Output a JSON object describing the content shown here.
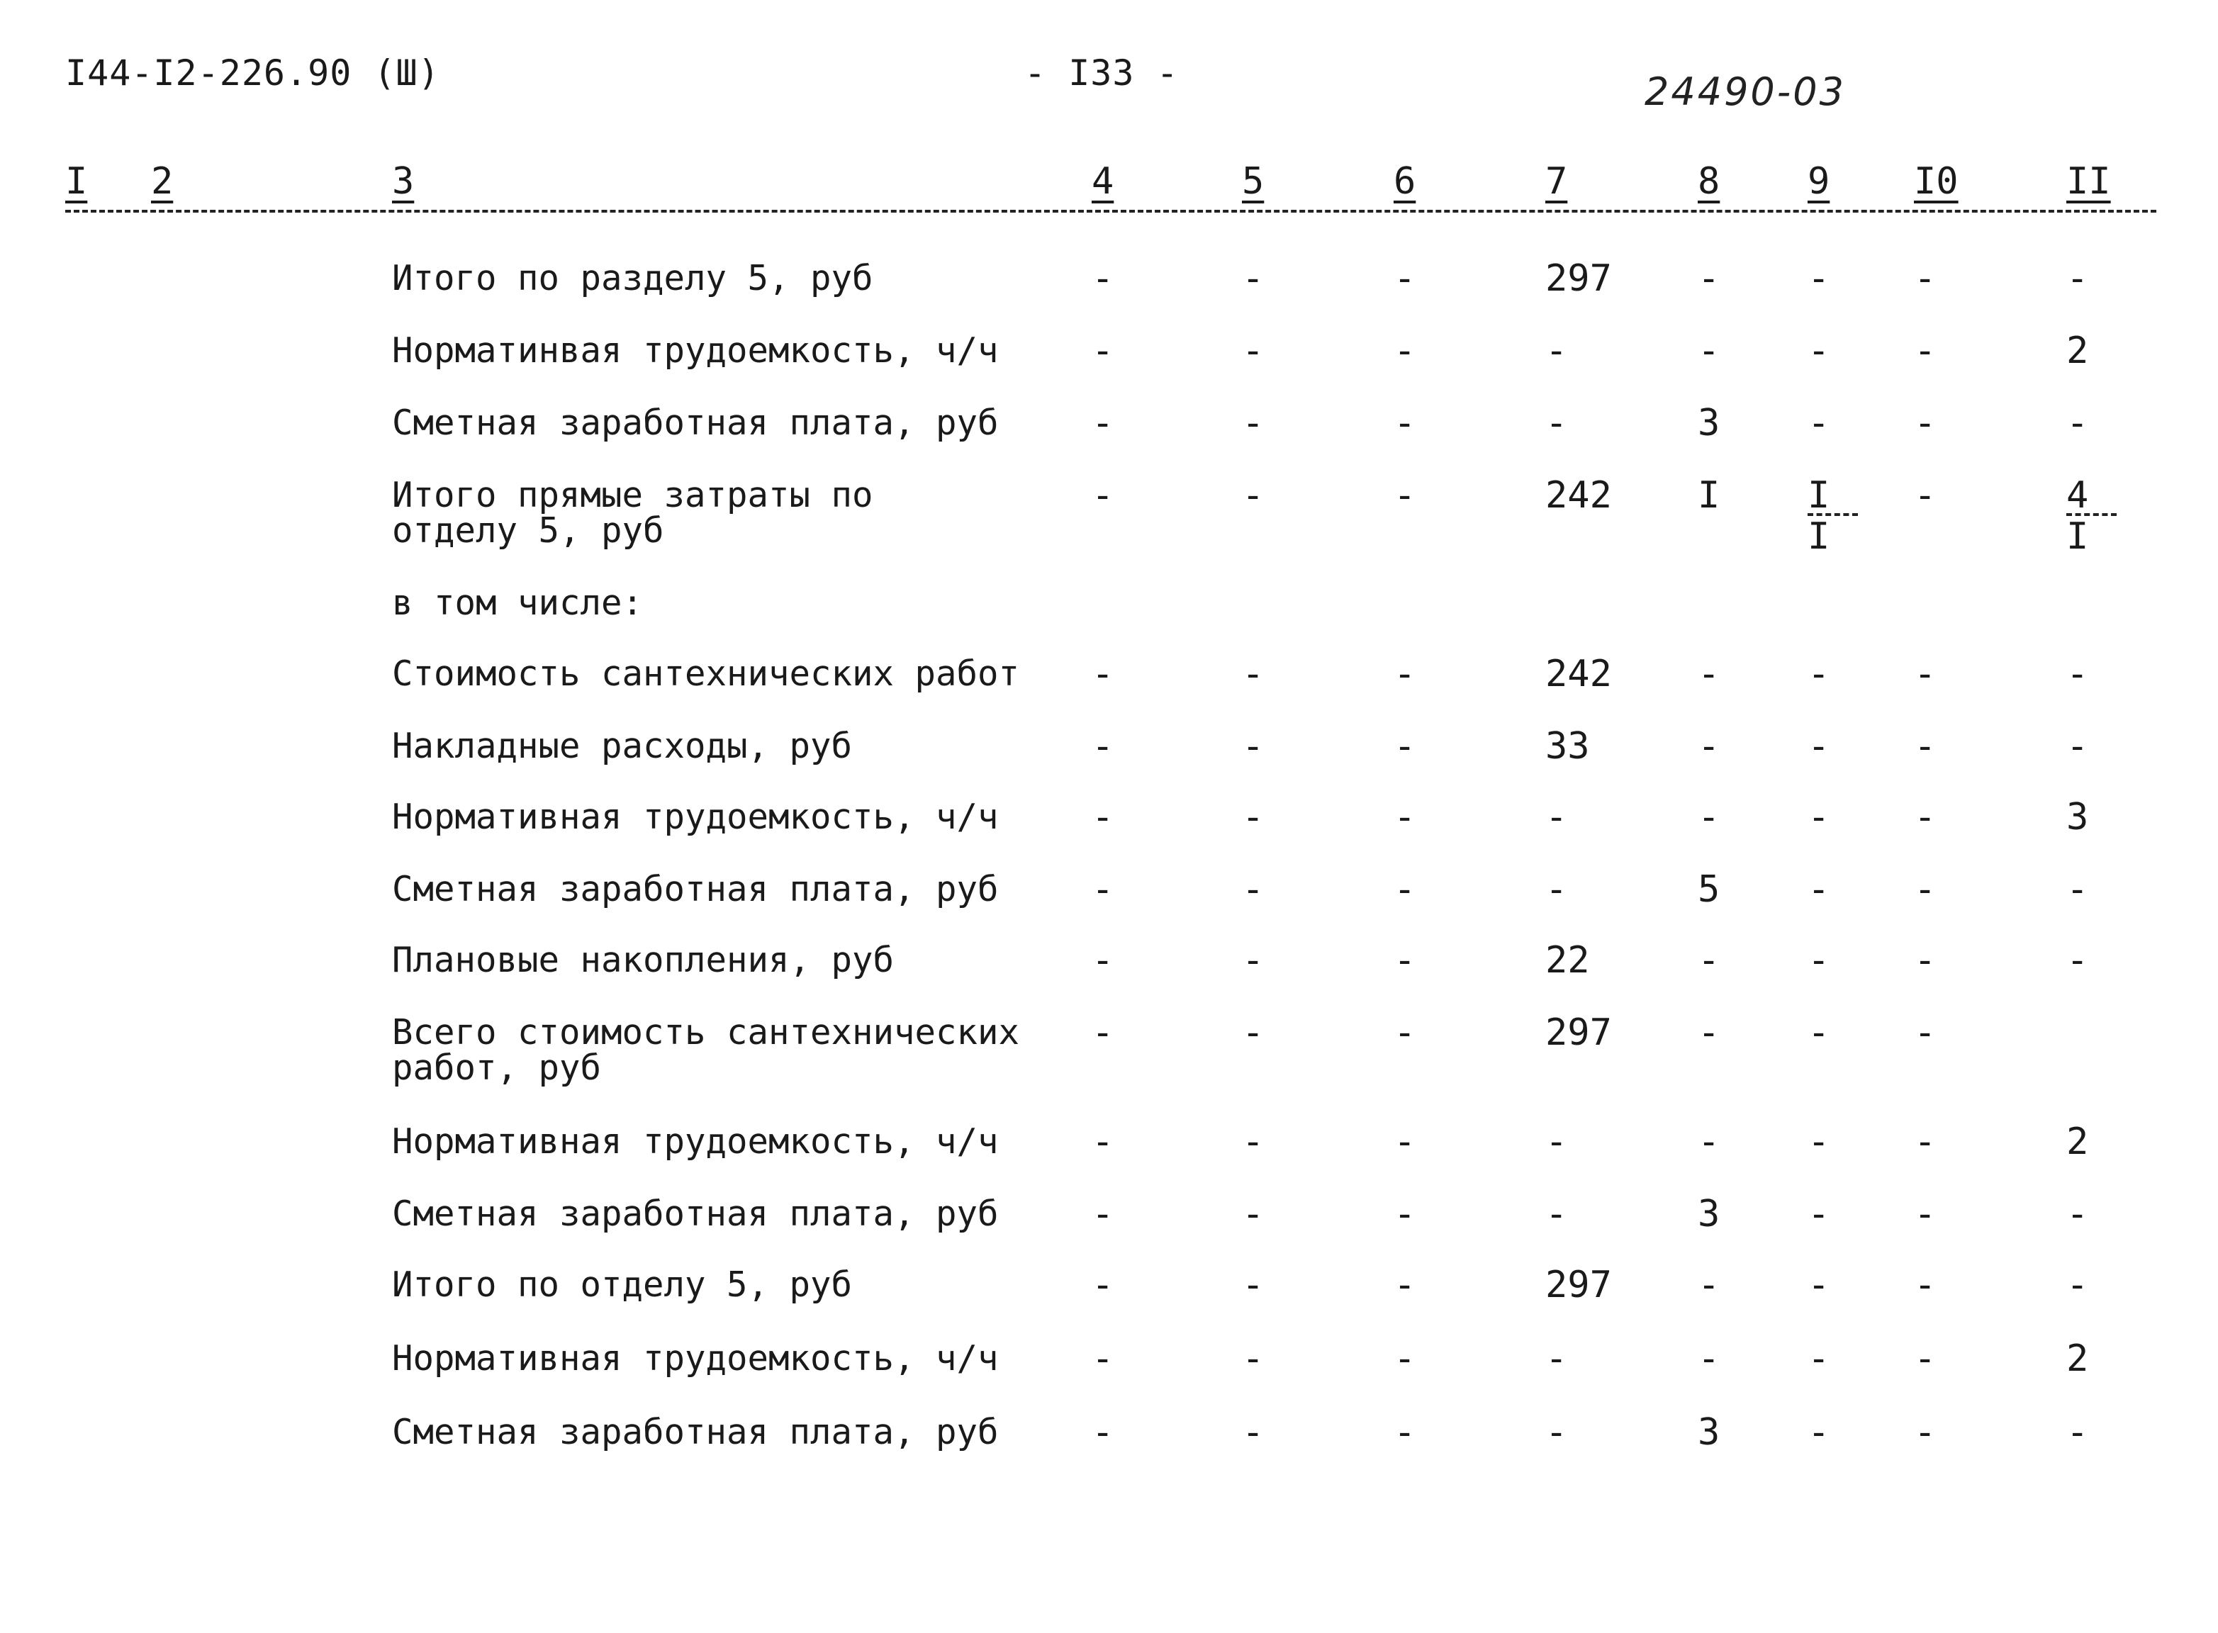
{
  "header": {
    "doc_code": "I44-I2-226.90 (Ш)",
    "page_number": "- I33 -",
    "stamp": "24490-03"
  },
  "columns": [
    "I",
    "2",
    "3",
    "4",
    "5",
    "6",
    "7",
    "8",
    "9",
    "I0",
    "II"
  ],
  "rows": [
    {
      "label": [
        "Итого по разделу 5, руб"
      ],
      "cells": [
        "-",
        "-",
        "-",
        "297",
        "-",
        "-",
        "-",
        "-"
      ]
    },
    {
      "label": [
        "Норматинвая трудоемкость, ч/ч"
      ],
      "cells": [
        "-",
        "-",
        "-",
        "-",
        "-",
        "-",
        "-",
        "2"
      ]
    },
    {
      "label": [
        "Сметная заработная плата, руб"
      ],
      "cells": [
        "-",
        "-",
        "-",
        "-",
        "3",
        "-",
        "-",
        "-"
      ]
    },
    {
      "label": [
        "Итого прямые затраты по",
        "отделу 5, руб"
      ],
      "cells": [
        "-",
        "-",
        "-",
        "242",
        "I",
        {
          "num": "I",
          "den": "I"
        },
        "-",
        {
          "num": "4",
          "den": "I"
        }
      ]
    },
    {
      "label": [
        "в том числе:"
      ],
      "cells": []
    },
    {
      "label": [
        "Стоимость сантехнических работ"
      ],
      "cells": [
        "-",
        "-",
        "-",
        "242",
        "-",
        "-",
        "-",
        "-"
      ]
    },
    {
      "label": [
        "Накладные расходы, руб"
      ],
      "cells": [
        "-",
        "-",
        "-",
        "33",
        "-",
        "-",
        "-",
        "-"
      ]
    },
    {
      "label": [
        "Нормативная трудоемкость, ч/ч"
      ],
      "cells": [
        "-",
        "-",
        "-",
        "-",
        "-",
        "-",
        "-",
        "3"
      ]
    },
    {
      "label": [
        "Сметная заработная плата, руб"
      ],
      "cells": [
        "-",
        "-",
        "-",
        "-",
        "5",
        "-",
        "-",
        "-"
      ]
    },
    {
      "label": [
        "Плановые накопления, руб"
      ],
      "cells": [
        "-",
        "-",
        "-",
        "22",
        "-",
        "-",
        "-",
        "-"
      ]
    },
    {
      "label": [
        "Всего стоимость сантехнических",
        "работ, руб"
      ],
      "cells": [
        "-",
        "-",
        "-",
        "297",
        "-",
        "-",
        "-",
        ""
      ]
    },
    {
      "label": [
        "Нормативная трудоемкость, ч/ч"
      ],
      "cells": [
        "-",
        "-",
        "-",
        "-",
        "-",
        "-",
        "-",
        "2"
      ]
    },
    {
      "label": [
        "Сметная заработная плата, руб"
      ],
      "cells": [
        "-",
        "-",
        "-",
        "-",
        "3",
        "-",
        "-",
        "-"
      ]
    },
    {
      "label": [
        "Итого по отделу 5, руб"
      ],
      "cells": [
        "-",
        "-",
        "-",
        "297",
        "-",
        "-",
        "-",
        "-"
      ]
    },
    {
      "label": [
        "Нормативная трудоемкость, ч/ч"
      ],
      "cells": [
        "-",
        "-",
        "-",
        "-",
        "-",
        "-",
        "-",
        "2"
      ]
    },
    {
      "label": [
        "Сметная заработная плата, руб"
      ],
      "cells": [
        "-",
        "-",
        "-",
        "-",
        "3",
        "-",
        "-",
        "-"
      ]
    }
  ]
}
